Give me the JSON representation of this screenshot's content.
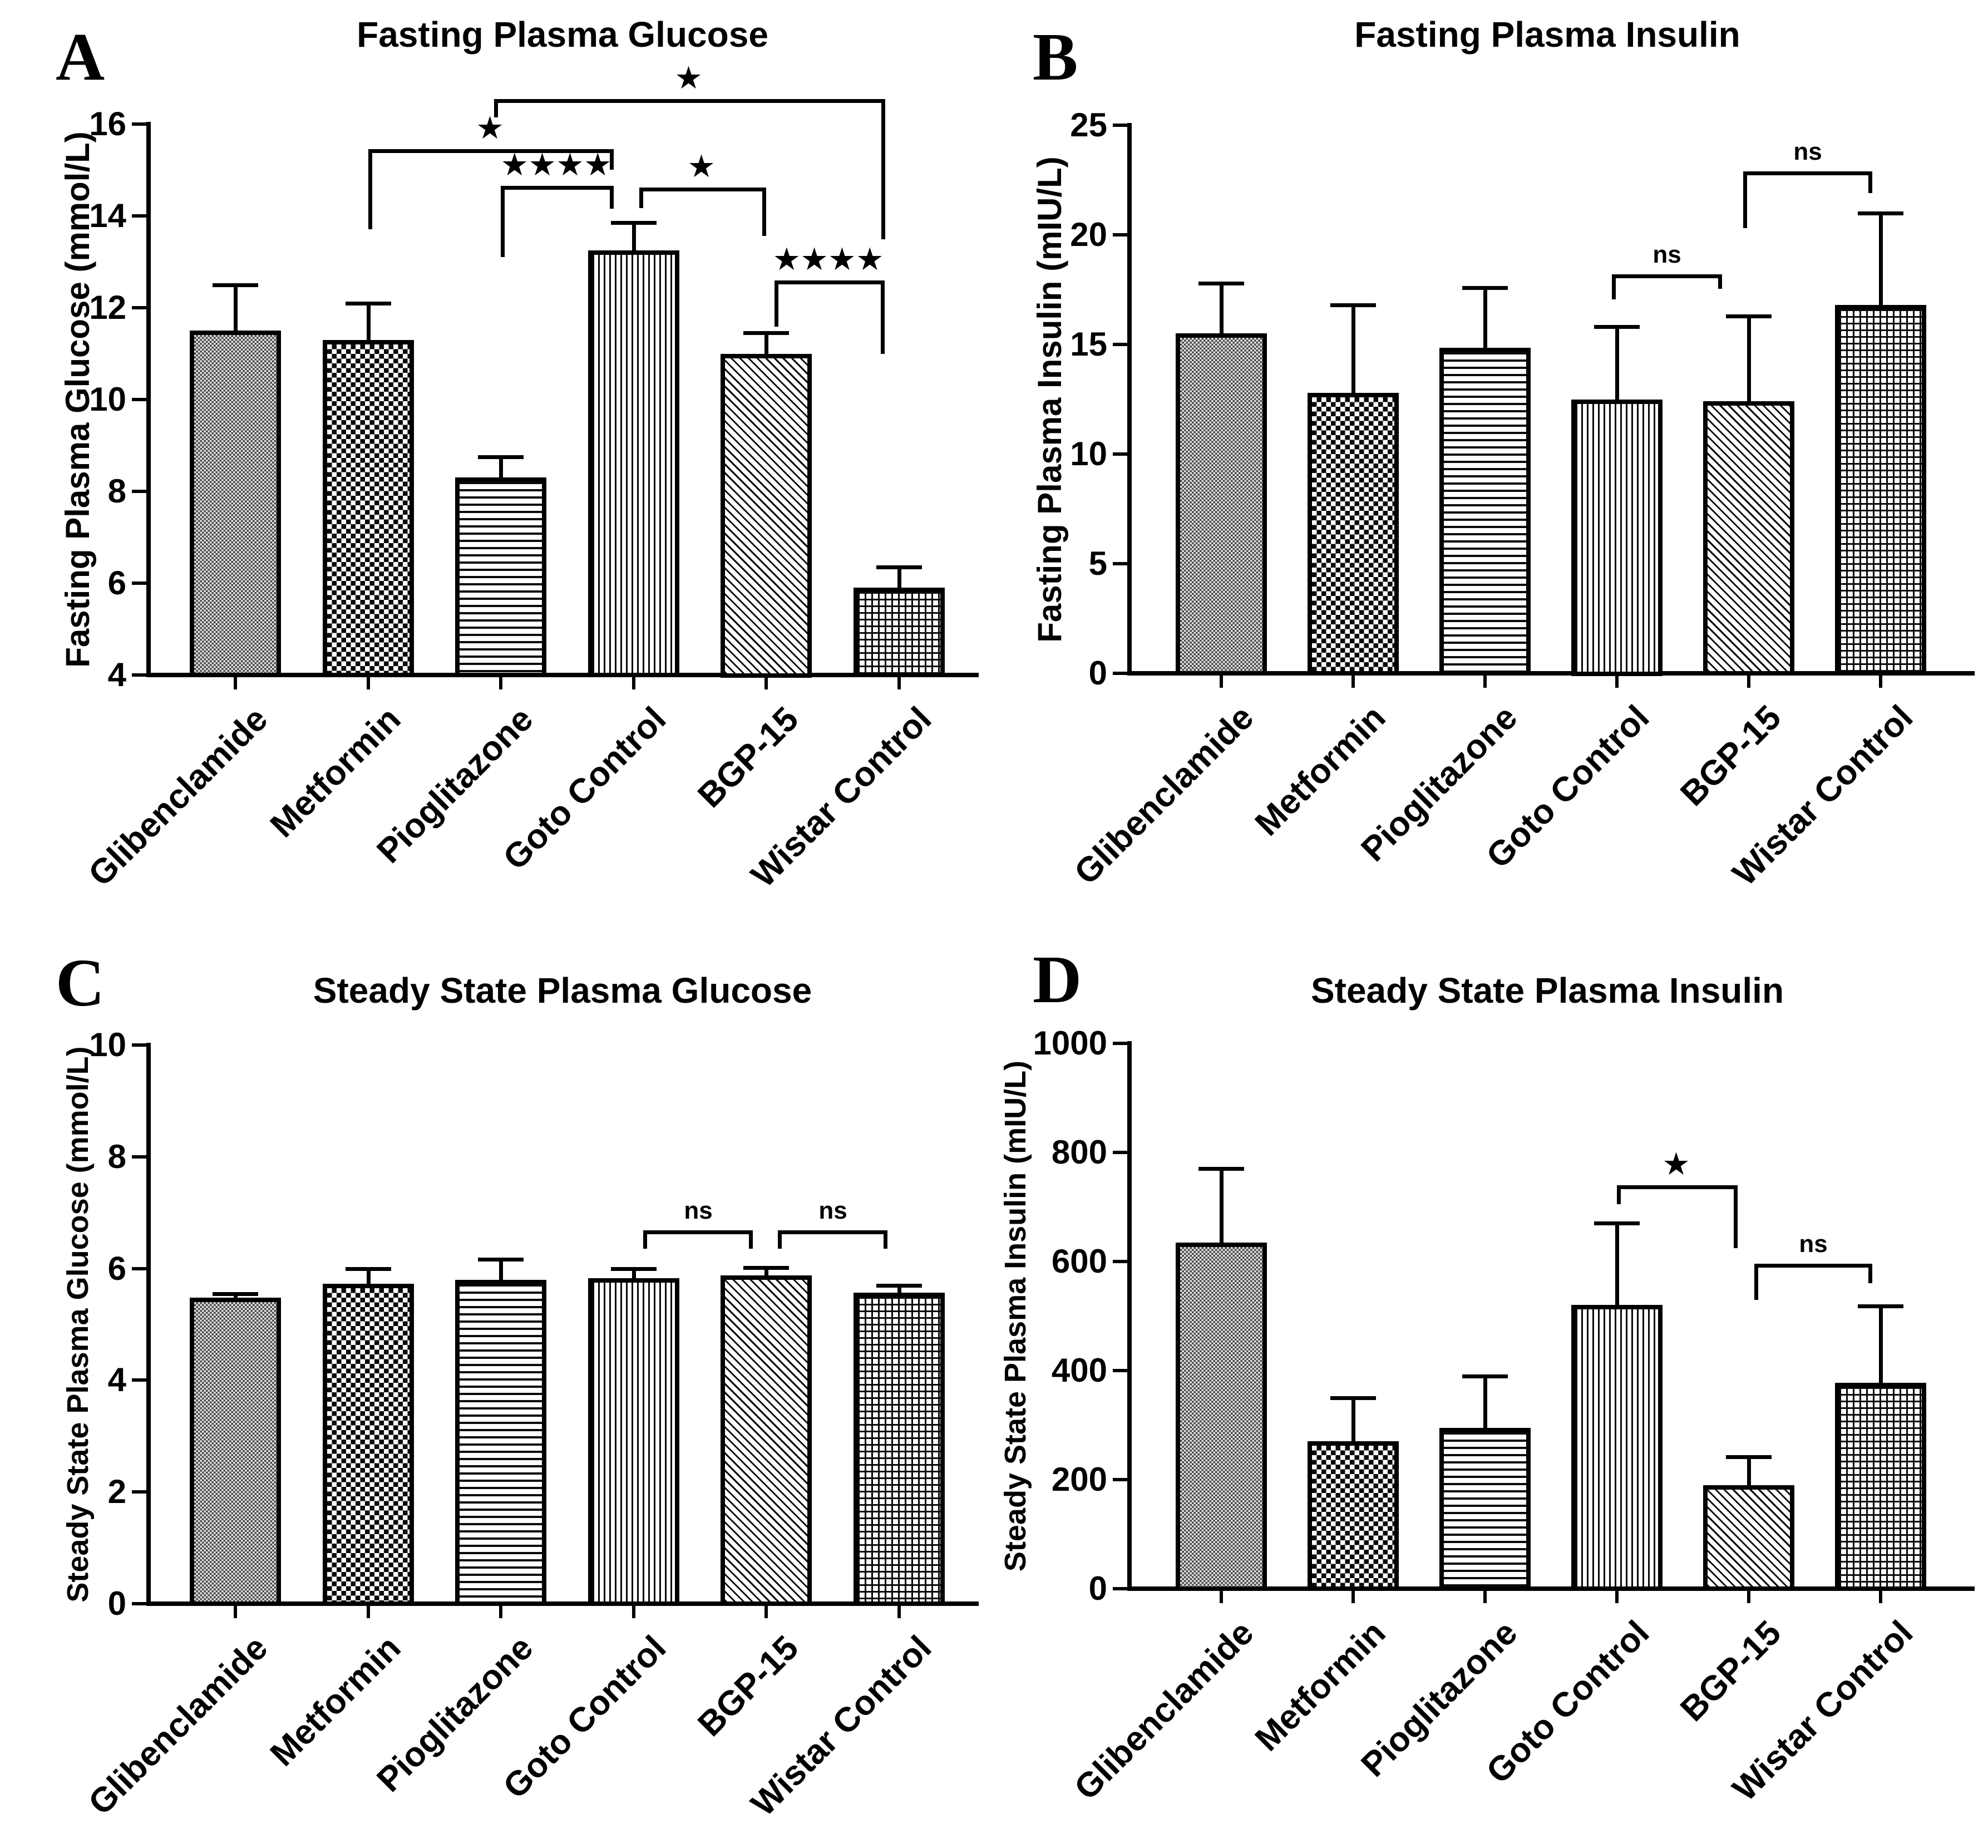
{
  "figure": {
    "background_color": "#ffffff",
    "ink_color": "#000000",
    "glibenclamide_fill_gray": "#474747",
    "bar_patterns": [
      {
        "category": "Glibenclamide",
        "pattern": "fine-checker-gray"
      },
      {
        "category": "Metformin",
        "pattern": "checkerboard"
      },
      {
        "category": "Pioglitazone",
        "pattern": "horizontal-lines"
      },
      {
        "category": "Goto Control",
        "pattern": "vertical-lines"
      },
      {
        "category": "BGP-15",
        "pattern": "diagonal-lines"
      },
      {
        "category": "Wistar Control",
        "pattern": "grid-crosshatch"
      }
    ]
  },
  "chart_data": [
    {
      "panel_letter": "A",
      "type": "bar",
      "title": "Fasting Plasma Glucose",
      "ylabel": "Fasting Plasma Glucose (mmol/L)",
      "xlabel": "",
      "categories": [
        "Glibenclamide",
        "Metformin",
        "Pioglitazone",
        "Goto Control",
        "BGP-15",
        "Wistar Control"
      ],
      "values": [
        11.5,
        11.3,
        8.3,
        13.25,
        11.0,
        5.9
      ],
      "errors": [
        1.0,
        0.8,
        0.45,
        0.6,
        0.45,
        0.45
      ],
      "ylim": [
        4,
        16
      ],
      "yticks": [
        4,
        6,
        8,
        10,
        12,
        14,
        16
      ],
      "grid": "off",
      "legend": "none",
      "significance": [
        {
          "pair": [
            1,
            3
          ],
          "label": "*",
          "y": 15.45,
          "drop": [
            1.75,
            0.45
          ],
          "dx": [
            0,
            -36
          ]
        },
        {
          "pair": [
            2,
            3
          ],
          "label": "****",
          "y": 14.65,
          "drop": [
            1.55,
            0.5
          ],
          "dx": [
            0,
            -36
          ]
        },
        {
          "pair": [
            3,
            4
          ],
          "label": "*",
          "y": 14.62,
          "drop": [
            0.45,
            1.05
          ],
          "dx": [
            10,
            0
          ]
        },
        {
          "pair": [
            2,
            5
          ],
          "label": "*",
          "y": 16.55,
          "drop": [
            0.4,
            3.05
          ],
          "dx": [
            -12,
            -25
          ]
        },
        {
          "pair": [
            4,
            5
          ],
          "label": "****",
          "y": 12.6,
          "drop": [
            1.0,
            1.6
          ],
          "dx": [
            15,
            -26
          ]
        }
      ]
    },
    {
      "panel_letter": "B",
      "type": "bar",
      "title": "Fasting Plasma Insulin",
      "ylabel": "Fasting Plasma Insulin (mIU/L)",
      "xlabel": "",
      "categories": [
        "Glibenclamide",
        "Metformin",
        "Pioglitazone",
        "Goto Control",
        "BGP-15",
        "Wistar Control"
      ],
      "values": [
        15.5,
        12.8,
        14.85,
        12.5,
        12.4,
        16.8
      ],
      "errors": [
        2.3,
        4.0,
        2.75,
        3.3,
        3.9,
        4.2
      ],
      "ylim": [
        0,
        25
      ],
      "yticks": [
        0,
        5,
        10,
        15,
        20,
        25
      ],
      "grid": "off",
      "legend": "none",
      "significance": [
        {
          "pair": [
            3,
            4
          ],
          "label": "ns",
          "y": 18.2,
          "drop": [
            1.15,
            0.65
          ],
          "dx": [
            -9,
            -48
          ]
        },
        {
          "pair": [
            4,
            5
          ],
          "label": "ns",
          "y": 22.9,
          "drop": [
            2.6,
            1.0
          ],
          "dx": [
            -10,
            -15
          ]
        }
      ]
    },
    {
      "panel_letter": "C",
      "type": "bar",
      "title": "Steady State Plasma Glucose",
      "ylabel": "Steady State Plasma Glucose (mmol/L)",
      "xlabel": "",
      "categories": [
        "Glibenclamide",
        "Metformin",
        "Pioglitazone",
        "Goto Control",
        "BGP-15",
        "Wistar Control"
      ],
      "values": [
        5.48,
        5.73,
        5.8,
        5.83,
        5.88,
        5.57
      ],
      "errors": [
        0.07,
        0.27,
        0.37,
        0.17,
        0.14,
        0.13
      ],
      "ylim": [
        0,
        10
      ],
      "yticks": [
        0,
        2,
        4,
        6,
        8,
        10
      ],
      "grid": "off",
      "legend": "none",
      "significance": [
        {
          "pair": [
            3,
            4
          ],
          "label": "ns",
          "y": 6.68,
          "drop": [
            0.33,
            0.33
          ],
          "dx": [
            17,
            -24
          ]
        },
        {
          "pair": [
            4,
            5
          ],
          "label": "ns",
          "y": 6.68,
          "drop": [
            0.33,
            0.33
          ],
          "dx": [
            21,
            -21
          ]
        }
      ]
    },
    {
      "panel_letter": "D",
      "type": "bar",
      "title": "Steady State Plasma Insulin",
      "ylabel": "Steady State Plasma Insulin (mIU/L)",
      "xlabel": "",
      "categories": [
        "Glibenclamide",
        "Metformin",
        "Pioglitazone",
        "Goto Control",
        "BGP-15",
        "Wistar Control"
      ],
      "values": [
        635,
        270,
        295,
        520,
        190,
        378
      ],
      "errors": [
        135,
        80,
        95,
        150,
        52,
        140
      ],
      "ylim": [
        0,
        1000
      ],
      "yticks": [
        0,
        200,
        400,
        600,
        800,
        1000
      ],
      "grid": "off",
      "legend": "none",
      "significance": [
        {
          "pair": [
            3,
            4
          ],
          "label": "*",
          "y": 740,
          "drop": [
            35,
            115
          ],
          "dx": [
            0,
            -20
          ]
        },
        {
          "pair": [
            4,
            5
          ],
          "label": "ns",
          "y": 596,
          "drop": [
            66,
            36
          ],
          "dx": [
            10,
            -15
          ]
        }
      ]
    }
  ]
}
